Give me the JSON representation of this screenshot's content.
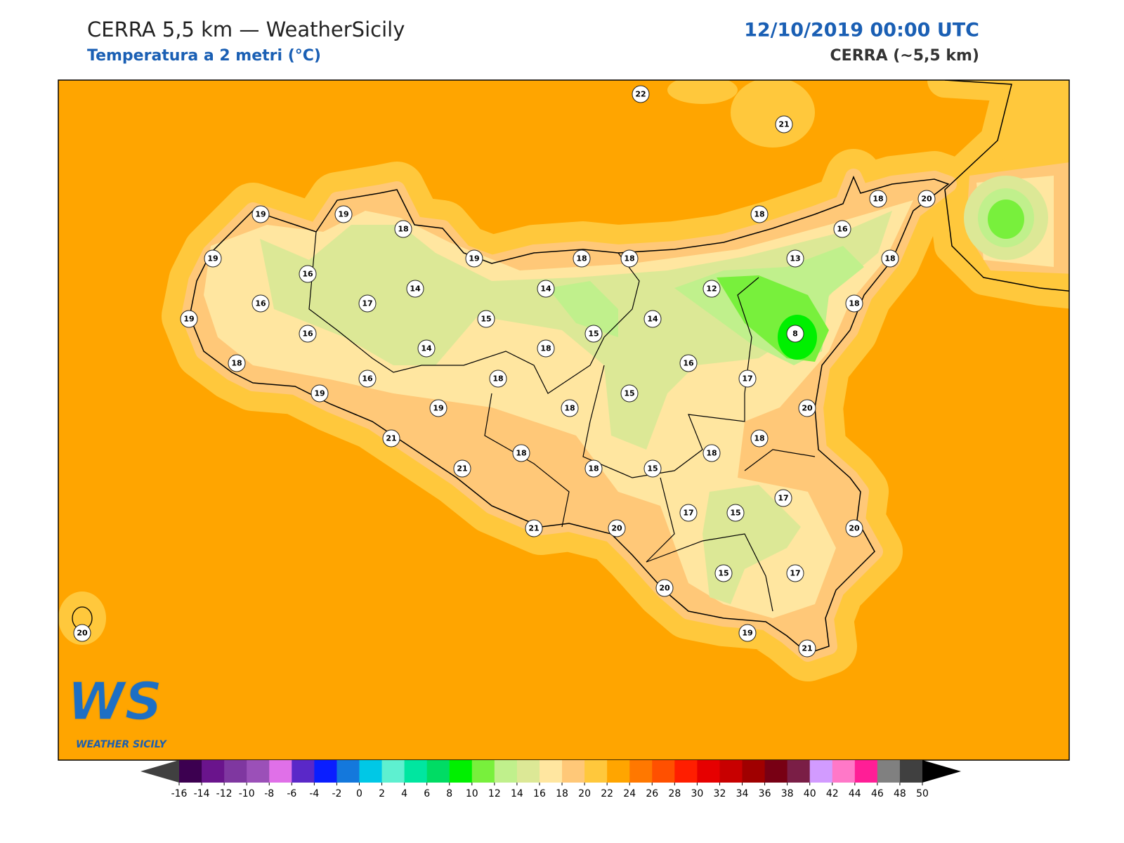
{
  "header": {
    "title": "CERRA 5,5 km — WeatherSicily",
    "subtitle": "Temperatura a 2 metri (°C)",
    "datetime": "12/10/2019 00:00 UTC",
    "model": "CERRA (~5,5 km)"
  },
  "map": {
    "stations": [
      22,
      21,
      19,
      19,
      18,
      18,
      18,
      20,
      16,
      19,
      19,
      18,
      18,
      13,
      18,
      16,
      14,
      14,
      12,
      16,
      17,
      18,
      19,
      15,
      14,
      15,
      16,
      8,
      14,
      18,
      18,
      16,
      16,
      18,
      17,
      19,
      15,
      19,
      18,
      20,
      21,
      18,
      18,
      18,
      21,
      18,
      15,
      17,
      17,
      15,
      21,
      20,
      20,
      15,
      17,
      20,
      20,
      19,
      21
    ]
  },
  "colorbar": {
    "ticks": [
      -16,
      -14,
      -12,
      -10,
      -8,
      -6,
      -4,
      -2,
      0,
      2,
      4,
      6,
      8,
      10,
      12,
      14,
      16,
      18,
      20,
      22,
      24,
      26,
      28,
      30,
      32,
      34,
      36,
      38,
      40,
      42,
      44,
      46,
      48,
      50
    ],
    "colors": [
      "#3c0050",
      "#6a148c",
      "#7f37a0",
      "#9b50b8",
      "#e070e8",
      "#5a28c8",
      "#0a1eff",
      "#1478dc",
      "#00c8e6",
      "#5ef0d0",
      "#00e6a0",
      "#00dc64",
      "#00f000",
      "#78f03c",
      "#c0f08c",
      "#dce896",
      "#ffe6a0",
      "#ffc878",
      "#ffc83c",
      "#ffa500",
      "#ff7800",
      "#ff5000",
      "#ff1e00",
      "#e60000",
      "#c80000",
      "#a00000",
      "#780014",
      "#7a1e46",
      "#d29bff",
      "#ff78c8",
      "#ff1e96",
      "#808080",
      "#404040"
    ],
    "under_color": "#404040",
    "over_color": "#000000"
  },
  "logo": {
    "mark": "WS",
    "text": "WEATHER SICILY"
  }
}
